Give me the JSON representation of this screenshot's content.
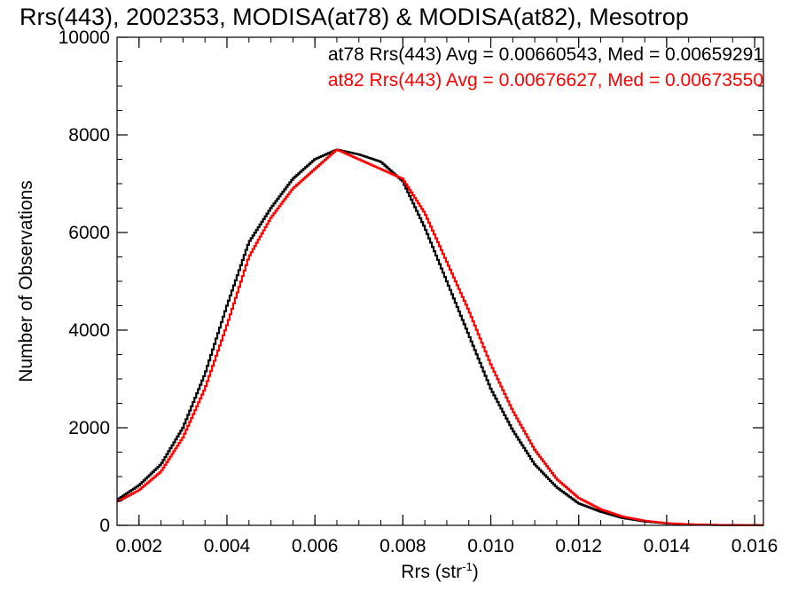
{
  "chart_data": {
    "type": "line",
    "title": "Rrs(443), 2002353, MODISA(at78) & MODISA(at82), Mesotrop",
    "xlabel": "Rrs (str",
    "xlabel_sup": "-1",
    "xlabel_close": ")",
    "ylabel": "Number of Observations",
    "xlim": [
      0.0015,
      0.0162
    ],
    "ylim": [
      0,
      10000
    ],
    "xticks": [
      0.002,
      0.004,
      0.006,
      0.008,
      0.01,
      0.012,
      0.014,
      0.016
    ],
    "xtick_labels": [
      "0.002",
      "0.004",
      "0.006",
      "0.008",
      "0.010",
      "0.012",
      "0.014",
      "0.016"
    ],
    "yticks": [
      0,
      2000,
      4000,
      6000,
      8000,
      10000
    ],
    "ytick_labels": [
      "0",
      "2000",
      "4000",
      "6000",
      "8000",
      "10000"
    ],
    "grid": false,
    "legend_position": "top-right",
    "series": [
      {
        "name": "at78",
        "label": "at78 Rrs(443) Avg = 0.00660543, Med = 0.00659291",
        "color": "#000000",
        "x": [
          0.0015,
          0.002,
          0.0025,
          0.003,
          0.0035,
          0.004,
          0.0045,
          0.005,
          0.0055,
          0.006,
          0.0065,
          0.007,
          0.0075,
          0.008,
          0.0085,
          0.009,
          0.0095,
          0.01,
          0.0105,
          0.011,
          0.0115,
          0.012,
          0.0125,
          0.013,
          0.0135,
          0.014,
          0.0145,
          0.015,
          0.0155,
          0.016
        ],
        "values": [
          520,
          820,
          1250,
          2000,
          3100,
          4500,
          5800,
          6500,
          7100,
          7500,
          7700,
          7600,
          7450,
          7050,
          6100,
          5000,
          3900,
          2800,
          1950,
          1250,
          780,
          450,
          280,
          150,
          80,
          40,
          20,
          10,
          5,
          2
        ]
      },
      {
        "name": "at82",
        "label": "at82 Rrs(443) Avg = 0.00676627, Med = 0.00673550",
        "color": "#ff0000",
        "x": [
          0.0015,
          0.002,
          0.0025,
          0.003,
          0.0035,
          0.004,
          0.0045,
          0.005,
          0.0055,
          0.006,
          0.0065,
          0.007,
          0.0075,
          0.008,
          0.0085,
          0.009,
          0.0095,
          0.01,
          0.0105,
          0.011,
          0.0115,
          0.012,
          0.0125,
          0.013,
          0.0135,
          0.014,
          0.0145,
          0.015,
          0.0155,
          0.016
        ],
        "values": [
          480,
          720,
          1100,
          1800,
          2800,
          4100,
          5500,
          6300,
          6900,
          7300,
          7700,
          7500,
          7300,
          7100,
          6400,
          5400,
          4400,
          3300,
          2350,
          1550,
          950,
          560,
          330,
          180,
          95,
          45,
          22,
          10,
          5,
          2
        ]
      }
    ]
  }
}
